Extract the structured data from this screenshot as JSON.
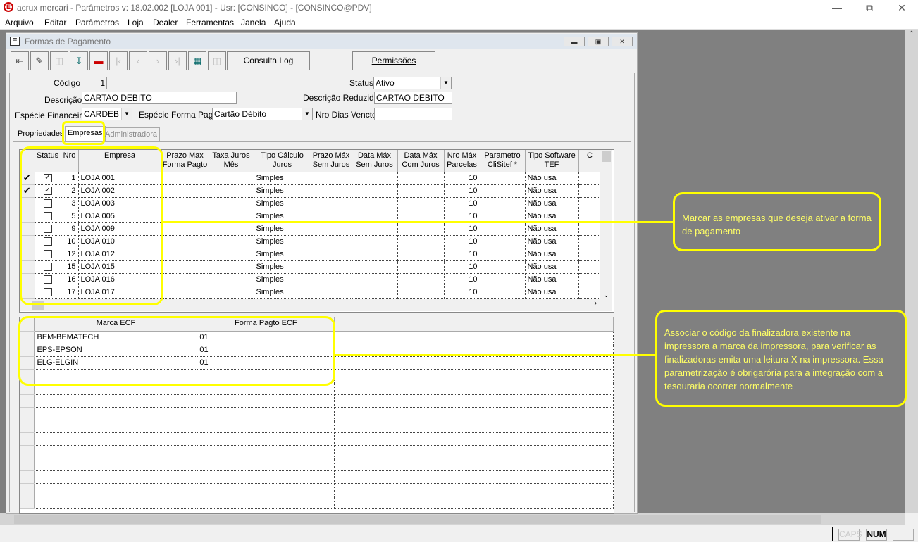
{
  "app": {
    "title": "acrux mercari - Parâmetros  v: 18.02.002   [LOJA 001] - Usr: [CONSINCO] - [CONSINCO@PDV]",
    "logo": "E"
  },
  "menu": [
    "Arquivo",
    "Editar",
    "Parâmetros",
    "Loja",
    "Dealer",
    "Ferramentas",
    "Janela",
    "Ajuda"
  ],
  "window": {
    "title": "Formas de Pagamento"
  },
  "toolbar": {
    "consulta_log": "Consulta Log",
    "permissoes": "Permissões"
  },
  "form": {
    "codigo_label": "Código",
    "codigo": "1",
    "descricao_label": "Descrição",
    "descricao": "CARTAO DEBITO",
    "especie_fin_label": "Espécie Financeira",
    "especie_fin": "CARDEB",
    "especie_forma_label": "Espécie Forma Pagto",
    "especie_forma": "Cartão Débito",
    "status_label": "Status",
    "status": "Ativo",
    "desc_red_label": "Descrição Reduzida",
    "desc_red": "CARTAO DEBITO",
    "nro_dias_label": "Nro Dias Vencto",
    "nro_dias": ""
  },
  "tabs": [
    "Propriedades",
    "Empresas",
    "Administradora"
  ],
  "active_tab": "Empresas",
  "empresas_grid": {
    "headers": [
      "Status",
      "Nro",
      "Empresa",
      "Prazo Max Forma Pagto",
      "Taxa Juros Mês",
      "Tipo Cálculo Juros",
      "Prazo Máx Sem Juros",
      "Data Máx Sem Juros",
      "Data Máx Com Juros",
      "Nro Máx Parcelas",
      "Parametro CliSitef *",
      "Tipo Software TEF",
      "C"
    ],
    "rows": [
      {
        "marked": true,
        "status": true,
        "nro": "1",
        "empresa": "LOJA 001",
        "tipo": "Simples",
        "parcelas": "10",
        "tef": "Não usa"
      },
      {
        "marked": true,
        "status": true,
        "nro": "2",
        "empresa": "LOJA 002",
        "tipo": "Simples",
        "parcelas": "10",
        "tef": "Não usa"
      },
      {
        "marked": false,
        "status": false,
        "nro": "3",
        "empresa": "LOJA 003",
        "tipo": "Simples",
        "parcelas": "10",
        "tef": "Não usa"
      },
      {
        "marked": false,
        "status": false,
        "nro": "5",
        "empresa": "LOJA 005",
        "tipo": "Simples",
        "parcelas": "10",
        "tef": "Não usa"
      },
      {
        "marked": false,
        "status": false,
        "nro": "9",
        "empresa": "LOJA 009",
        "tipo": "Simples",
        "parcelas": "10",
        "tef": "Não usa"
      },
      {
        "marked": false,
        "status": false,
        "nro": "10",
        "empresa": "LOJA 010",
        "tipo": "Simples",
        "parcelas": "10",
        "tef": "Não usa"
      },
      {
        "marked": false,
        "status": false,
        "nro": "12",
        "empresa": "LOJA 012",
        "tipo": "Simples",
        "parcelas": "10",
        "tef": "Não usa"
      },
      {
        "marked": false,
        "status": false,
        "nro": "15",
        "empresa": "LOJA 015",
        "tipo": "Simples",
        "parcelas": "10",
        "tef": "Não usa"
      },
      {
        "marked": false,
        "status": false,
        "nro": "16",
        "empresa": "LOJA 016",
        "tipo": "Simples",
        "parcelas": "10",
        "tef": "Não usa"
      },
      {
        "marked": false,
        "status": false,
        "nro": "17",
        "empresa": "LOJA 017",
        "tipo": "Simples",
        "parcelas": "10",
        "tef": "Não usa"
      }
    ]
  },
  "ecf_grid": {
    "headers": [
      "Marca ECF",
      "Forma Pagto ECF"
    ],
    "rows": [
      [
        "BEM-BEMATECH",
        "01"
      ],
      [
        "EPS-EPSON",
        "01"
      ],
      [
        "ELG-ELGIN",
        "01"
      ]
    ]
  },
  "callouts": {
    "empresas": "Marcar as empresas que deseja ativar a forma de pagamento",
    "ecf": "Associar o código da finalizadora existente na impressora a marca da impressora, para verificar as finalizadoras emita uma leitura X na impressora. Essa parametrização é obrigarória para a integração com a tesouraria ocorrer normalmente"
  },
  "statusbar": {
    "caps": "CAPS",
    "num": "NUM"
  },
  "colors": {
    "highlight": "#ffff00",
    "mdi_background": "#808080"
  }
}
